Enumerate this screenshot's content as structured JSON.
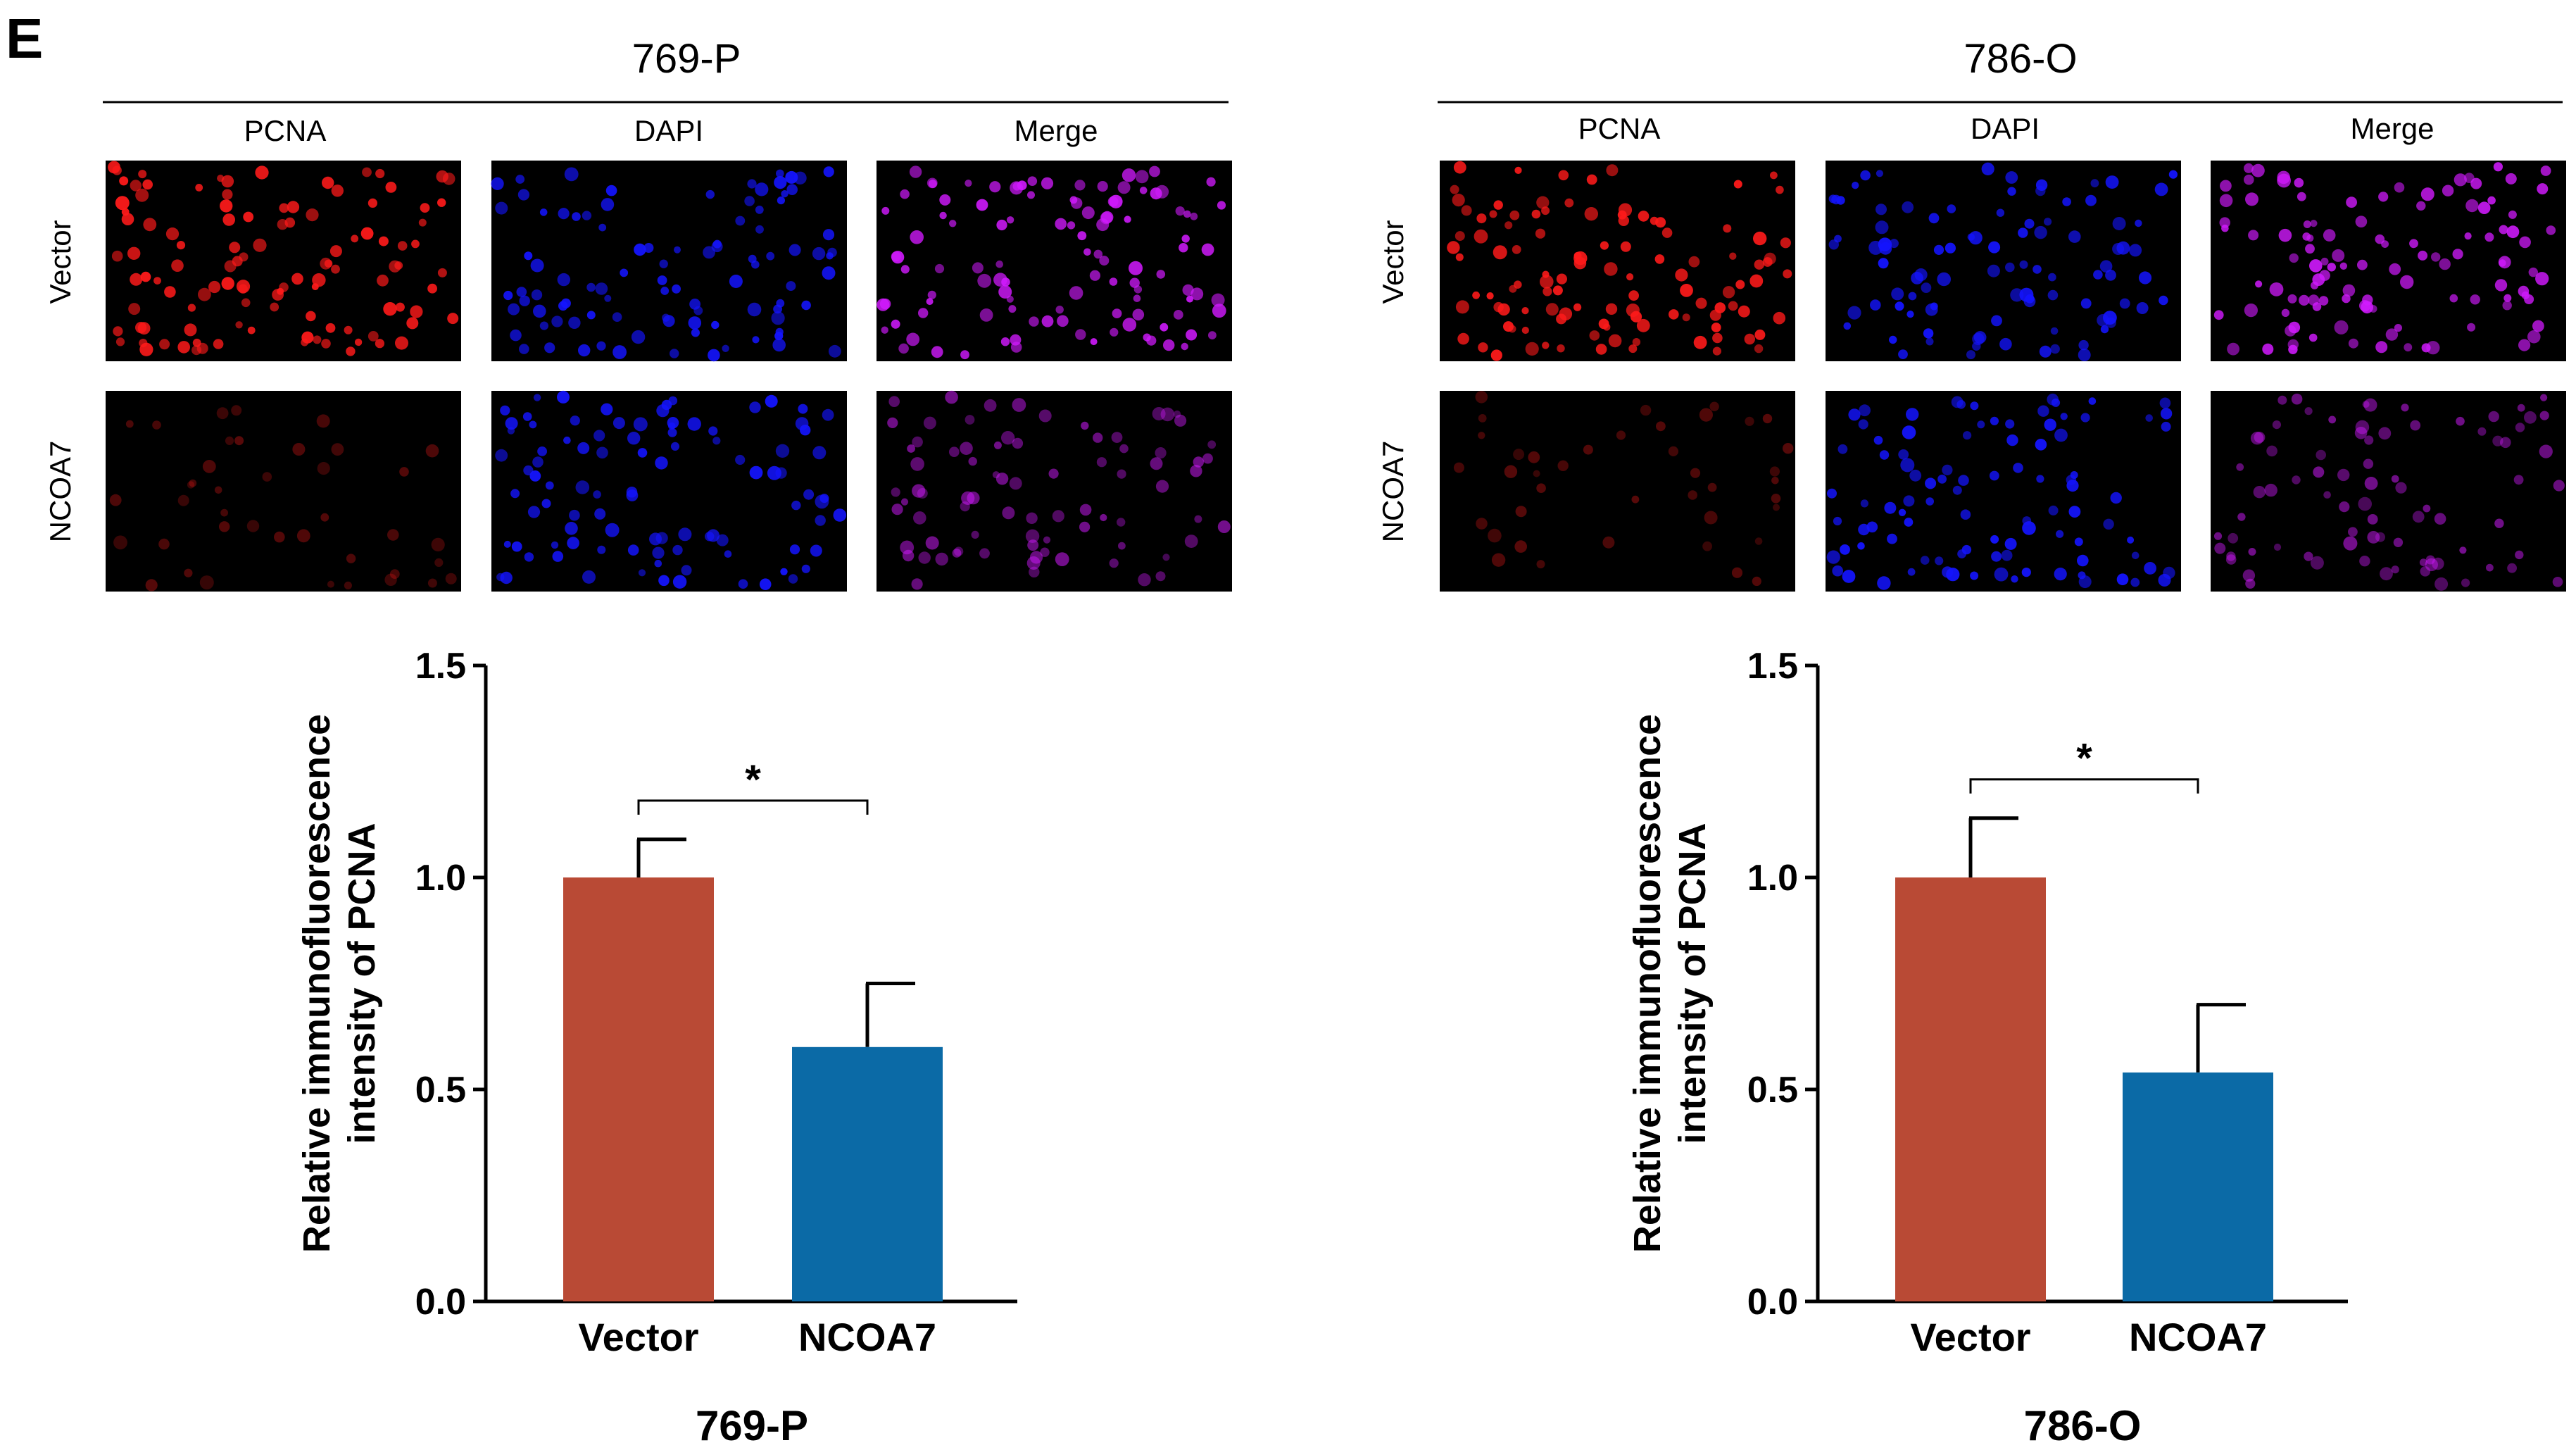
{
  "figure": {
    "panel_label": "E",
    "groups": [
      {
        "title": "769-P",
        "columns": [
          "PCNA",
          "DAPI",
          "Merge"
        ],
        "rows": [
          "Vector",
          "NCOA7"
        ],
        "pcna_levels": [
          1.0,
          0.6
        ]
      },
      {
        "title": "786-O",
        "columns": [
          "PCNA",
          "DAPI",
          "Merge"
        ],
        "rows": [
          "Vector",
          "NCOA7"
        ],
        "pcna_levels": [
          1.0,
          0.54
        ]
      }
    ]
  },
  "colors": {
    "vector_bar": "#b94a35",
    "ncoa7_bar": "#0b6aa6",
    "pcna": "#ff1a1a",
    "dapi": "#1414ff",
    "merge": "#d21aff"
  },
  "chart_data": [
    {
      "type": "bar",
      "title": "769-P",
      "categories": [
        "Vector",
        "NCOA7"
      ],
      "values": [
        1.0,
        0.6
      ],
      "errors": [
        0.09,
        0.15
      ],
      "ylabel": [
        "Relative immunofluorescence",
        "intensity of PCNA"
      ],
      "ylim": [
        0,
        1.5
      ],
      "yticks": [
        "0.0",
        "0.5",
        "1.0",
        "1.5"
      ],
      "significance": "*",
      "grid": false
    },
    {
      "type": "bar",
      "title": "786-O",
      "categories": [
        "Vector",
        "NCOA7"
      ],
      "values": [
        1.0,
        0.54
      ],
      "errors": [
        0.14,
        0.16
      ],
      "ylabel": [
        "Relative immunofluorescence",
        "intensity of PCNA"
      ],
      "ylim": [
        0,
        1.5
      ],
      "yticks": [
        "0.0",
        "0.5",
        "1.0",
        "1.5"
      ],
      "significance": "*",
      "grid": false
    }
  ]
}
